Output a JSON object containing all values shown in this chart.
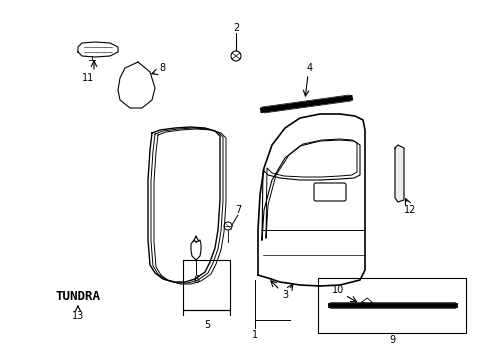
{
  "background_color": "#ffffff",
  "line_color": "#000000",
  "figure_width": 4.89,
  "figure_height": 3.6,
  "dpi": 100
}
